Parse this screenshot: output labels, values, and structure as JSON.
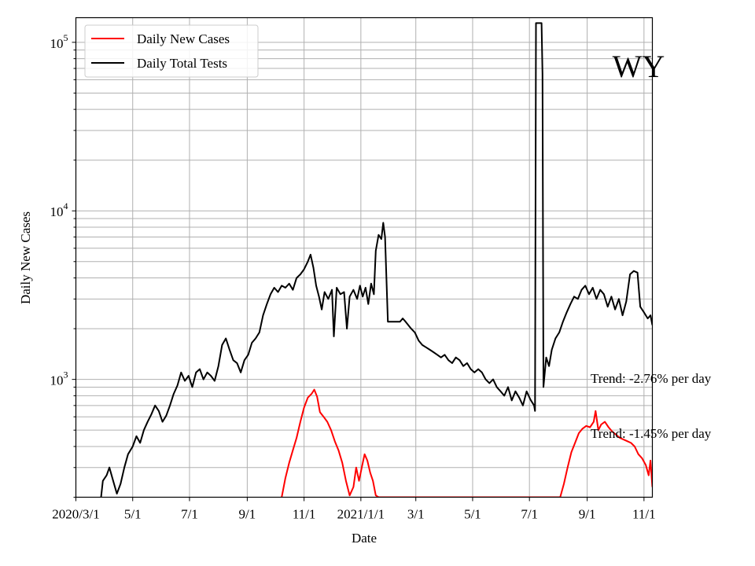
{
  "chart_data": {
    "type": "line",
    "title": "",
    "state_label": "WY",
    "xlabel": "Date",
    "ylabel": "Daily New Cases",
    "yscale": "log",
    "ylim": [
      200,
      140000
    ],
    "xlim": [
      "2020-03-01",
      "2021-11-10"
    ],
    "x_ticks": [
      {
        "date": "2020-03-01",
        "label": "2020/3/1"
      },
      {
        "date": "2020-05-01",
        "label": "5/1"
      },
      {
        "date": "2020-07-01",
        "label": "7/1"
      },
      {
        "date": "2020-09-01",
        "label": "9/1"
      },
      {
        "date": "2020-11-01",
        "label": "11/1"
      },
      {
        "date": "2021-01-01",
        "label": "2021/1/1"
      },
      {
        "date": "2021-03-01",
        "label": "3/1"
      },
      {
        "date": "2021-05-01",
        "label": "5/1"
      },
      {
        "date": "2021-07-01",
        "label": "7/1"
      },
      {
        "date": "2021-09-01",
        "label": "9/1"
      },
      {
        "date": "2021-11-01",
        "label": "11/1"
      }
    ],
    "y_ticks": [
      {
        "value": 1000,
        "base": "10",
        "exp": "3"
      },
      {
        "value": 10000,
        "base": "10",
        "exp": "4"
      },
      {
        "value": 100000,
        "base": "10",
        "exp": "5"
      }
    ],
    "grid": true,
    "legend_position": "top-left",
    "annotations": [
      "Trend: -2.76% per day",
      "Trend: -1.45% per day"
    ],
    "series": [
      {
        "name": "Daily New Cases",
        "color": "#ff0000",
        "points": [
          [
            "2020-10-08",
            200
          ],
          [
            "2020-10-12",
            260
          ],
          [
            "2020-10-16",
            320
          ],
          [
            "2020-10-20",
            380
          ],
          [
            "2020-10-24",
            450
          ],
          [
            "2020-10-28",
            560
          ],
          [
            "2020-11-01",
            680
          ],
          [
            "2020-11-05",
            780
          ],
          [
            "2020-11-09",
            820
          ],
          [
            "2020-11-12",
            870
          ],
          [
            "2020-11-15",
            790
          ],
          [
            "2020-11-18",
            640
          ],
          [
            "2020-11-22",
            600
          ],
          [
            "2020-11-26",
            560
          ],
          [
            "2020-11-30",
            500
          ],
          [
            "2020-12-04",
            430
          ],
          [
            "2020-12-08",
            380
          ],
          [
            "2020-12-12",
            320
          ],
          [
            "2020-12-16",
            250
          ],
          [
            "2020-12-20",
            205
          ],
          [
            "2020-12-24",
            230
          ],
          [
            "2020-12-27",
            300
          ],
          [
            "2020-12-30",
            250
          ],
          [
            "2021-01-02",
            300
          ],
          [
            "2021-01-05",
            360
          ],
          [
            "2021-01-08",
            330
          ],
          [
            "2021-01-11",
            280
          ],
          [
            "2021-01-14",
            250
          ],
          [
            "2021-01-17",
            205
          ],
          [
            "2021-01-20",
            200
          ],
          [
            "2021-08-03",
            200
          ],
          [
            "2021-08-07",
            240
          ],
          [
            "2021-08-11",
            300
          ],
          [
            "2021-08-15",
            370
          ],
          [
            "2021-08-19",
            420
          ],
          [
            "2021-08-23",
            480
          ],
          [
            "2021-08-27",
            510
          ],
          [
            "2021-08-31",
            530
          ],
          [
            "2021-09-04",
            520
          ],
          [
            "2021-09-08",
            560
          ],
          [
            "2021-09-10",
            650
          ],
          [
            "2021-09-13",
            500
          ],
          [
            "2021-09-16",
            540
          ],
          [
            "2021-09-20",
            560
          ],
          [
            "2021-09-24",
            520
          ],
          [
            "2021-09-28",
            490
          ],
          [
            "2021-10-02",
            470
          ],
          [
            "2021-10-06",
            450
          ],
          [
            "2021-10-10",
            440
          ],
          [
            "2021-10-14",
            430
          ],
          [
            "2021-10-18",
            420
          ],
          [
            "2021-10-22",
            400
          ],
          [
            "2021-10-26",
            360
          ],
          [
            "2021-10-30",
            340
          ],
          [
            "2021-11-03",
            310
          ],
          [
            "2021-11-06",
            270
          ],
          [
            "2021-11-08",
            330
          ],
          [
            "2021-11-10",
            230
          ]
        ]
      },
      {
        "name": "Daily Total Tests",
        "color": "#000000",
        "points": [
          [
            "2020-03-28",
            200
          ],
          [
            "2020-03-30",
            250
          ],
          [
            "2020-04-03",
            270
          ],
          [
            "2020-04-06",
            300
          ],
          [
            "2020-04-10",
            250
          ],
          [
            "2020-04-14",
            210
          ],
          [
            "2020-04-18",
            240
          ],
          [
            "2020-04-22",
            300
          ],
          [
            "2020-04-26",
            360
          ],
          [
            "2020-05-01",
            400
          ],
          [
            "2020-05-05",
            460
          ],
          [
            "2020-05-09",
            420
          ],
          [
            "2020-05-13",
            500
          ],
          [
            "2020-05-17",
            560
          ],
          [
            "2020-05-21",
            620
          ],
          [
            "2020-05-25",
            700
          ],
          [
            "2020-05-29",
            650
          ],
          [
            "2020-06-02",
            560
          ],
          [
            "2020-06-06",
            610
          ],
          [
            "2020-06-10",
            700
          ],
          [
            "2020-06-14",
            820
          ],
          [
            "2020-06-18",
            920
          ],
          [
            "2020-06-22",
            1100
          ],
          [
            "2020-06-26",
            980
          ],
          [
            "2020-06-30",
            1050
          ],
          [
            "2020-07-04",
            900
          ],
          [
            "2020-07-08",
            1100
          ],
          [
            "2020-07-12",
            1150
          ],
          [
            "2020-07-16",
            1000
          ],
          [
            "2020-07-20",
            1100
          ],
          [
            "2020-07-24",
            1050
          ],
          [
            "2020-07-28",
            980
          ],
          [
            "2020-08-01",
            1200
          ],
          [
            "2020-08-05",
            1600
          ],
          [
            "2020-08-09",
            1750
          ],
          [
            "2020-08-13",
            1500
          ],
          [
            "2020-08-17",
            1300
          ],
          [
            "2020-08-21",
            1250
          ],
          [
            "2020-08-25",
            1100
          ],
          [
            "2020-08-29",
            1300
          ],
          [
            "2020-09-02",
            1400
          ],
          [
            "2020-09-06",
            1650
          ],
          [
            "2020-09-10",
            1750
          ],
          [
            "2020-09-14",
            1900
          ],
          [
            "2020-09-18",
            2400
          ],
          [
            "2020-09-22",
            2800
          ],
          [
            "2020-09-26",
            3200
          ],
          [
            "2020-09-30",
            3500
          ],
          [
            "2020-10-04",
            3300
          ],
          [
            "2020-10-08",
            3600
          ],
          [
            "2020-10-12",
            3500
          ],
          [
            "2020-10-16",
            3700
          ],
          [
            "2020-10-20",
            3400
          ],
          [
            "2020-10-24",
            4000
          ],
          [
            "2020-10-28",
            4200
          ],
          [
            "2020-11-01",
            4500
          ],
          [
            "2020-11-05",
            5000
          ],
          [
            "2020-11-08",
            5500
          ],
          [
            "2020-11-11",
            4600
          ],
          [
            "2020-11-14",
            3600
          ],
          [
            "2020-11-17",
            3100
          ],
          [
            "2020-11-20",
            2600
          ],
          [
            "2020-11-23",
            3300
          ],
          [
            "2020-11-27",
            3000
          ],
          [
            "2020-12-01",
            3400
          ],
          [
            "2020-12-03",
            1800
          ],
          [
            "2020-12-06",
            3500
          ],
          [
            "2020-12-10",
            3200
          ],
          [
            "2020-12-14",
            3300
          ],
          [
            "2020-12-17",
            2000
          ],
          [
            "2020-12-20",
            3100
          ],
          [
            "2020-12-24",
            3400
          ],
          [
            "2020-12-28",
            3000
          ],
          [
            "2020-12-31",
            3600
          ],
          [
            "2021-01-03",
            3100
          ],
          [
            "2021-01-06",
            3500
          ],
          [
            "2021-01-09",
            2800
          ],
          [
            "2021-01-12",
            3700
          ],
          [
            "2021-01-15",
            3200
          ],
          [
            "2021-01-17",
            5800
          ],
          [
            "2021-01-20",
            7200
          ],
          [
            "2021-01-23",
            6800
          ],
          [
            "2021-01-25",
            8500
          ],
          [
            "2021-01-27",
            7000
          ],
          [
            "2021-01-30",
            2200
          ],
          [
            "2021-02-06",
            2200
          ],
          [
            "2021-02-12",
            2200
          ],
          [
            "2021-02-15",
            2300
          ],
          [
            "2021-02-18",
            2200
          ],
          [
            "2021-02-21",
            2100
          ],
          [
            "2021-02-24",
            2000
          ],
          [
            "2021-02-28",
            1900
          ],
          [
            "2021-03-04",
            1700
          ],
          [
            "2021-03-08",
            1600
          ],
          [
            "2021-03-12",
            1550
          ],
          [
            "2021-03-16",
            1500
          ],
          [
            "2021-03-20",
            1450
          ],
          [
            "2021-03-24",
            1400
          ],
          [
            "2021-03-28",
            1350
          ],
          [
            "2021-04-01",
            1400
          ],
          [
            "2021-04-05",
            1300
          ],
          [
            "2021-04-09",
            1250
          ],
          [
            "2021-04-13",
            1350
          ],
          [
            "2021-04-17",
            1300
          ],
          [
            "2021-04-21",
            1200
          ],
          [
            "2021-04-25",
            1250
          ],
          [
            "2021-04-29",
            1150
          ],
          [
            "2021-05-03",
            1100
          ],
          [
            "2021-05-07",
            1150
          ],
          [
            "2021-05-11",
            1100
          ],
          [
            "2021-05-15",
            1000
          ],
          [
            "2021-05-19",
            950
          ],
          [
            "2021-05-23",
            1000
          ],
          [
            "2021-05-27",
            900
          ],
          [
            "2021-05-31",
            850
          ],
          [
            "2021-06-04",
            800
          ],
          [
            "2021-06-08",
            900
          ],
          [
            "2021-06-12",
            750
          ],
          [
            "2021-06-16",
            850
          ],
          [
            "2021-06-20",
            780
          ],
          [
            "2021-06-24",
            700
          ],
          [
            "2021-06-28",
            850
          ],
          [
            "2021-07-02",
            760
          ],
          [
            "2021-07-06",
            700
          ],
          [
            "2021-07-07",
            650
          ],
          [
            "2021-07-08",
            130000
          ],
          [
            "2021-07-14",
            130000
          ],
          [
            "2021-07-15",
            65000
          ],
          [
            "2021-07-16",
            900
          ],
          [
            "2021-07-19",
            1350
          ],
          [
            "2021-07-22",
            1200
          ],
          [
            "2021-07-25",
            1500
          ],
          [
            "2021-07-29",
            1750
          ],
          [
            "2021-08-02",
            1900
          ],
          [
            "2021-08-06",
            2200
          ],
          [
            "2021-08-10",
            2500
          ],
          [
            "2021-08-14",
            2800
          ],
          [
            "2021-08-18",
            3100
          ],
          [
            "2021-08-22",
            3000
          ],
          [
            "2021-08-26",
            3400
          ],
          [
            "2021-08-30",
            3600
          ],
          [
            "2021-09-03",
            3200
          ],
          [
            "2021-09-07",
            3500
          ],
          [
            "2021-09-11",
            3000
          ],
          [
            "2021-09-15",
            3400
          ],
          [
            "2021-09-19",
            3200
          ],
          [
            "2021-09-23",
            2700
          ],
          [
            "2021-09-27",
            3100
          ],
          [
            "2021-10-01",
            2600
          ],
          [
            "2021-10-05",
            3000
          ],
          [
            "2021-10-09",
            2400
          ],
          [
            "2021-10-13",
            2900
          ],
          [
            "2021-10-17",
            4200
          ],
          [
            "2021-10-21",
            4400
          ],
          [
            "2021-10-25",
            4300
          ],
          [
            "2021-10-28",
            2700
          ],
          [
            "2021-11-01",
            2500
          ],
          [
            "2021-11-05",
            2300
          ],
          [
            "2021-11-08",
            2400
          ],
          [
            "2021-11-10",
            2100
          ]
        ]
      }
    ]
  }
}
